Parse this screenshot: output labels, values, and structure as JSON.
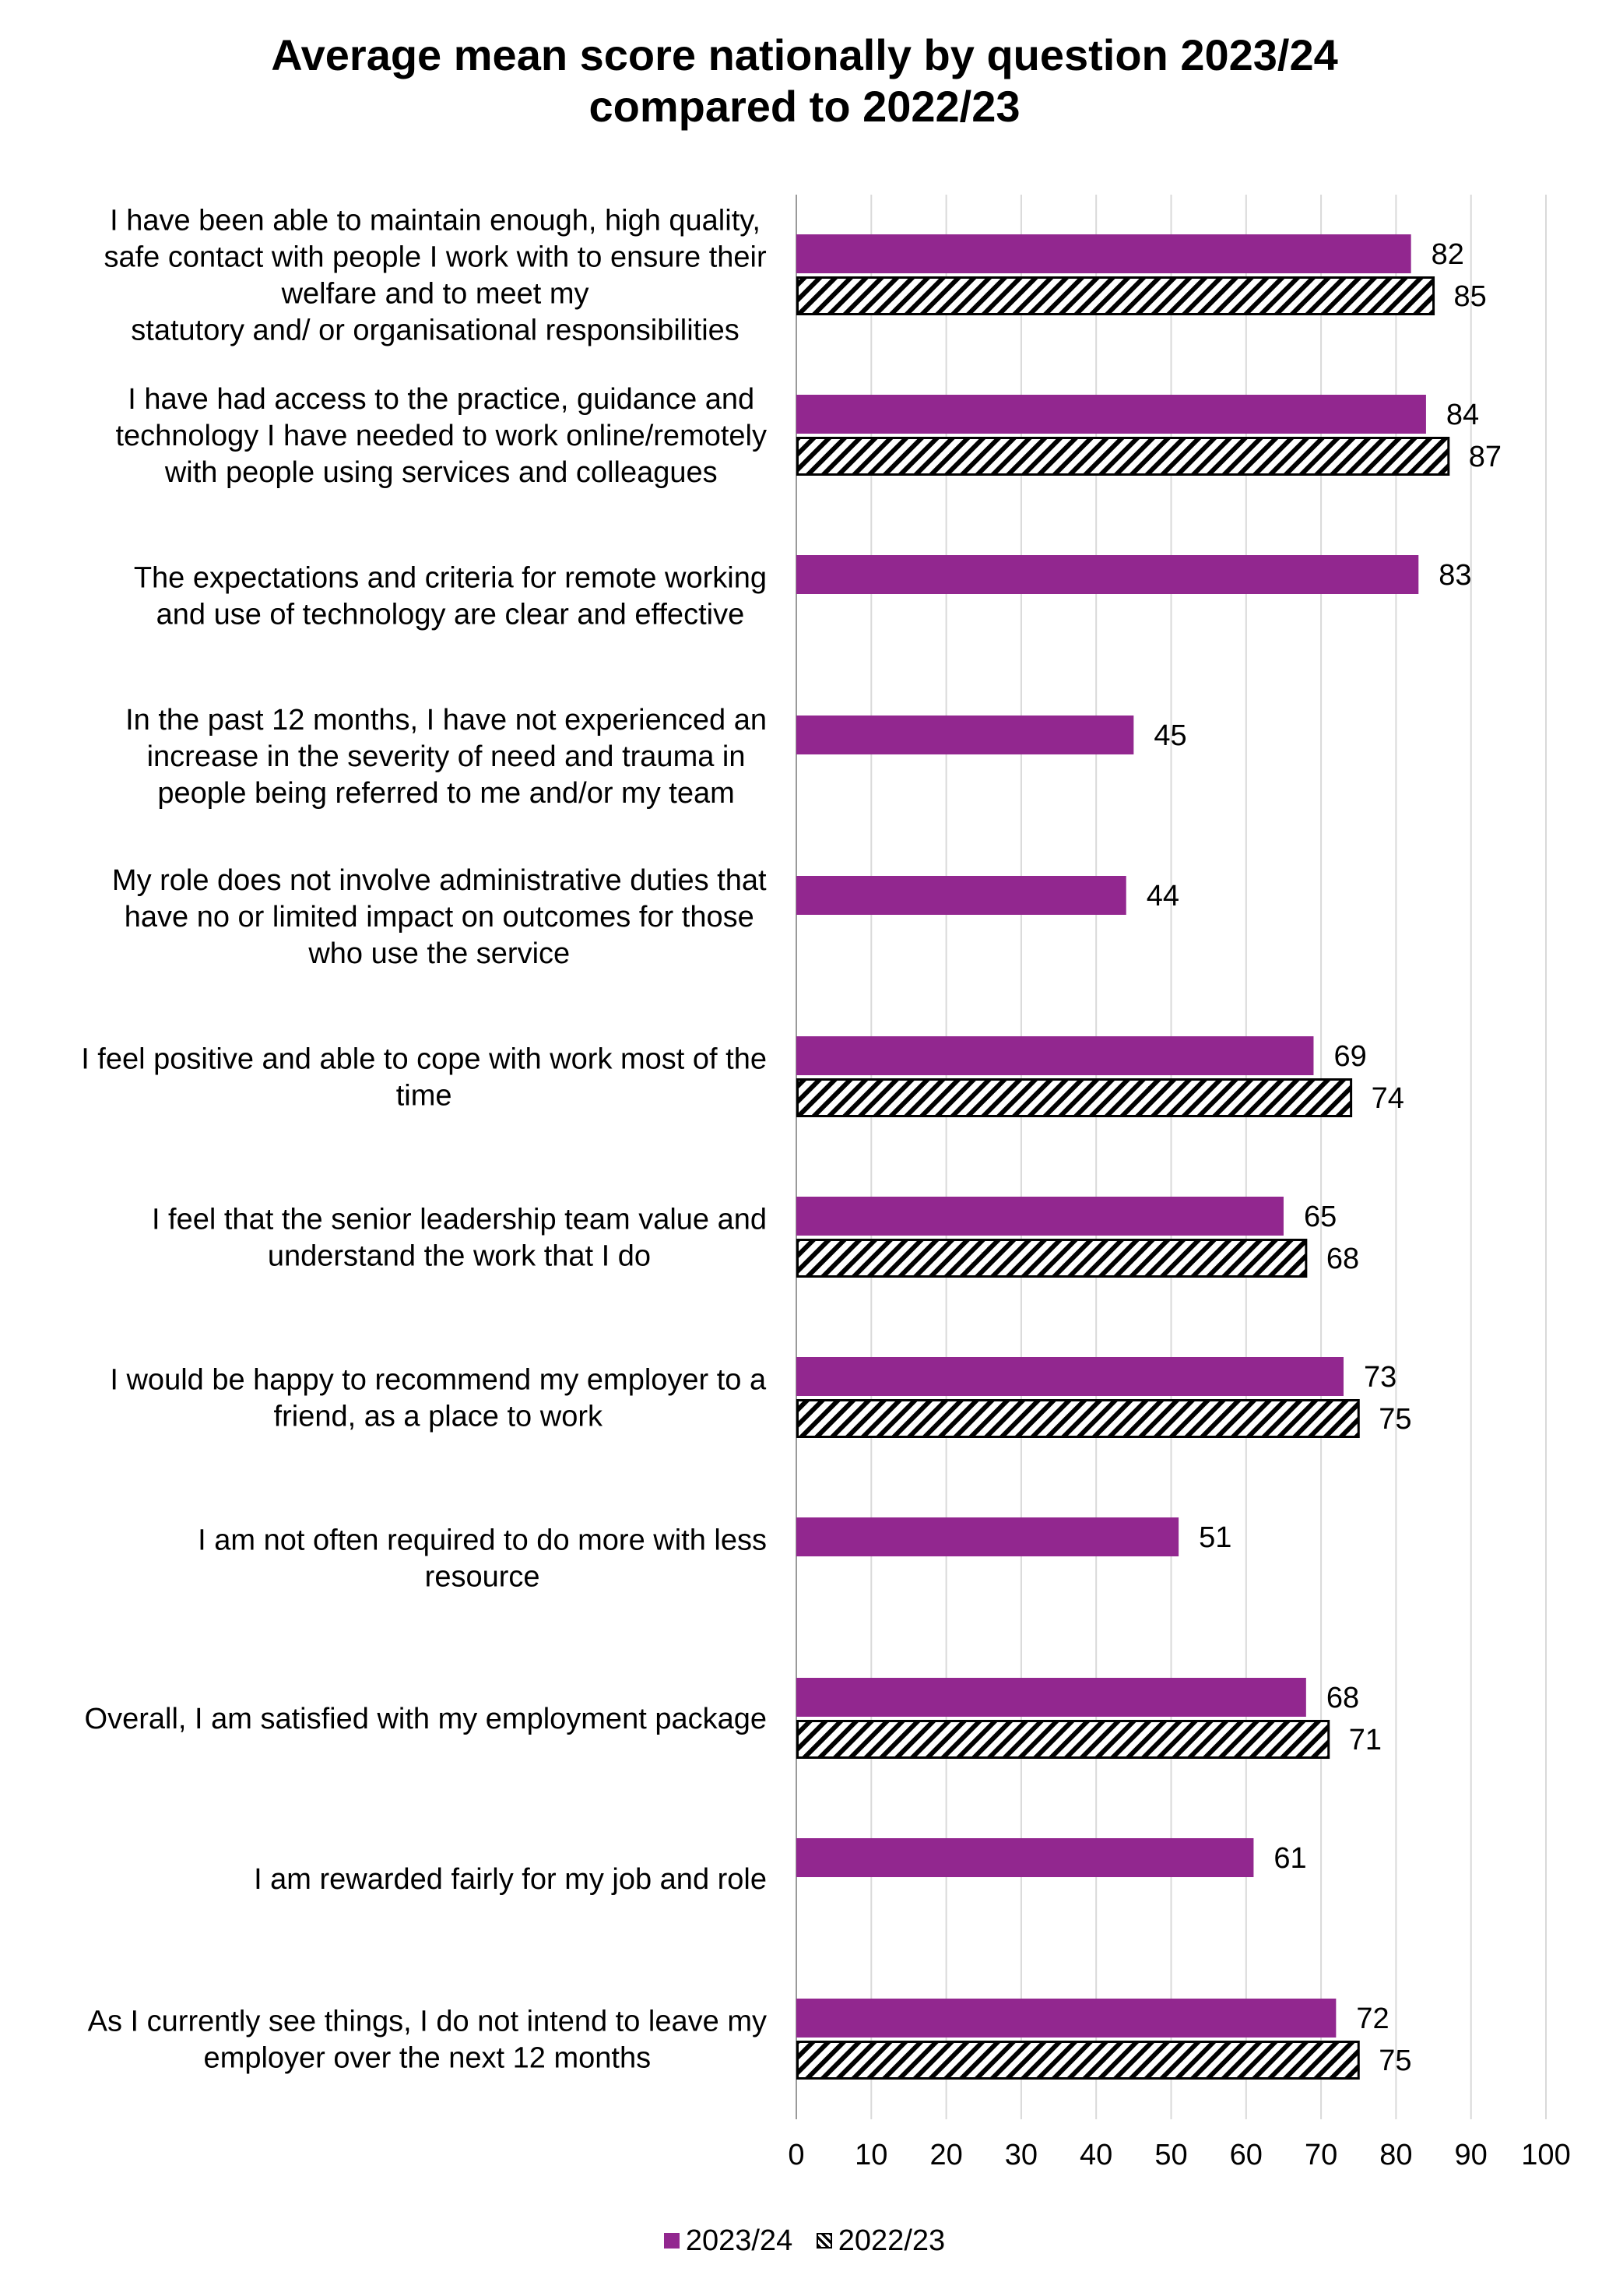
{
  "chart_data": {
    "type": "bar",
    "orientation": "horizontal",
    "title_lines": [
      "Average mean score nationally by question 2023/24",
      "compared to 2022/23"
    ],
    "categories": [
      [
        "I have been able to maintain enough, high quality,",
        "safe contact with people I work with to ensure their",
        "welfare and to meet my",
        "statutory and/ or organisational responsibilities"
      ],
      [
        "I have had access to the practice, guidance and",
        "technology I have needed to work online/remotely",
        "with people using services and colleagues"
      ],
      [
        "The expectations and criteria for remote working",
        "and use of technology are clear and effective"
      ],
      [
        "In the past 12 months, I have not experienced an",
        "increase in the severity of need and trauma in",
        "people being referred to me and/or my team"
      ],
      [
        "My role does not involve administrative duties that",
        "have no or limited impact on outcomes for those",
        "who use the service"
      ],
      [
        "I feel positive and able to cope with work most of the",
        "time"
      ],
      [
        "I feel that the senior leadership team value and",
        "understand the work that I do"
      ],
      [
        "I would be happy to recommend my employer to a",
        "friend, as a place to work"
      ],
      [
        "I am not often required to do more with less",
        "resource"
      ],
      [
        "Overall, I am satisfied with my employment package"
      ],
      [
        "I am rewarded fairly for my job and role"
      ],
      [
        "As I currently see things, I do not intend to leave my",
        "employer over the next 12 months"
      ]
    ],
    "series": [
      {
        "name": "2023/24",
        "color": "#92278f",
        "pattern": "solid",
        "values": [
          82,
          84,
          83,
          45,
          44,
          69,
          65,
          73,
          51,
          68,
          61,
          72
        ]
      },
      {
        "name": "2022/23",
        "color": "#000000",
        "pattern": "diagonal-hatch",
        "values": [
          85,
          87,
          null,
          null,
          null,
          74,
          68,
          75,
          null,
          71,
          null,
          75
        ]
      }
    ],
    "xlim": [
      0,
      100
    ],
    "xticks": [
      0,
      10,
      20,
      30,
      40,
      50,
      60,
      70,
      80,
      90,
      100
    ],
    "grid": "vertical",
    "legend_position": "bottom"
  }
}
